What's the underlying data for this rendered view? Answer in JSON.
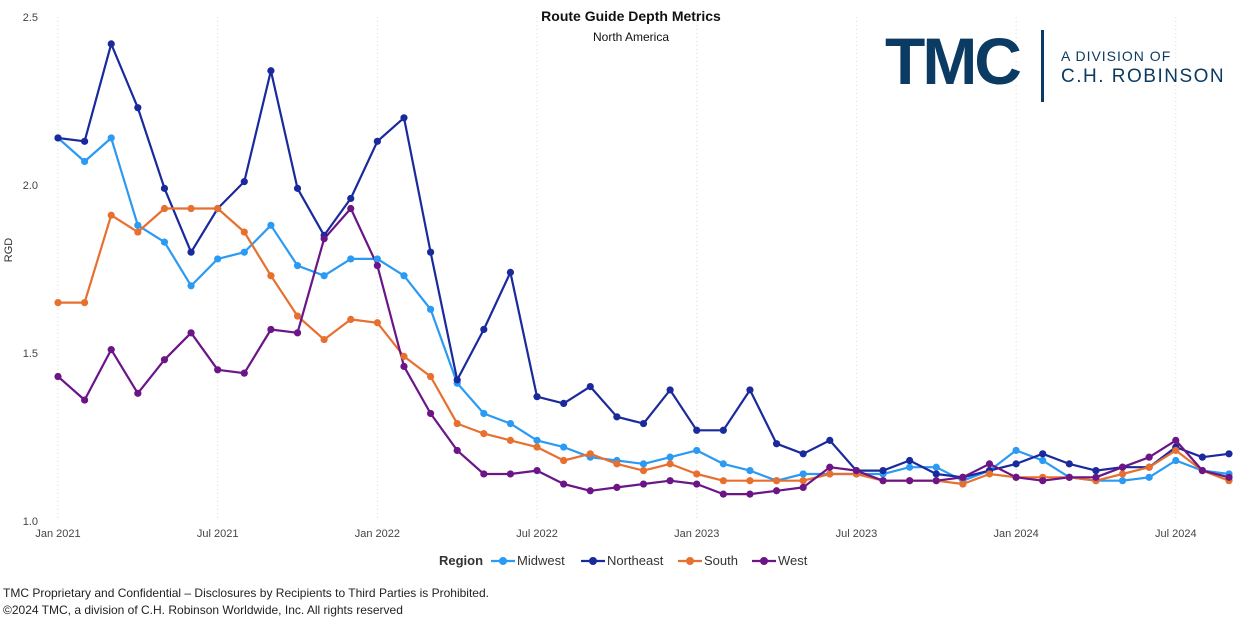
{
  "header": {
    "title": "Route Guide Depth Metrics",
    "subtitle": "North America"
  },
  "logo": {
    "main": "TMC",
    "line1": "A DIVISION OF",
    "line2": "C.H. ROBINSON"
  },
  "footer": {
    "line1": "TMC Proprietary and Confidential – Disclosures by Recipients to Third Parties is Prohibited.",
    "line2": "©2024 TMC, a division of C.H. Robinson Worldwide, Inc. All rights reserved"
  },
  "colors": {
    "Midwest": "#2b9af3",
    "Northeast": "#1a2a9c",
    "South": "#e8702f",
    "West": "#6b1587",
    "logo": "#0b3b63"
  },
  "chart_data": {
    "type": "line",
    "ylabel": "RGD",
    "ylim": [
      1.0,
      2.5
    ],
    "yticks": [
      "1.0",
      "1.5",
      "2.0",
      "2.5"
    ],
    "xticks": [
      "Jan 2021",
      "Jul 2021",
      "Jan 2022",
      "Jul 2022",
      "Jan 2023",
      "Jul 2023",
      "Jan 2024",
      "Jul 2024"
    ],
    "x": [
      "Jan 2021",
      "Feb 2021",
      "Mar 2021",
      "Apr 2021",
      "May 2021",
      "Jun 2021",
      "Jul 2021",
      "Aug 2021",
      "Sep 2021",
      "Oct 2021",
      "Nov 2021",
      "Dec 2021",
      "Jan 2022",
      "Feb 2022",
      "Mar 2022",
      "Apr 2022",
      "May 2022",
      "Jun 2022",
      "Jul 2022",
      "Aug 2022",
      "Sep 2022",
      "Oct 2022",
      "Nov 2022",
      "Dec 2022",
      "Jan 2023",
      "Feb 2023",
      "Mar 2023",
      "Apr 2023",
      "May 2023",
      "Jun 2023",
      "Jul 2023",
      "Aug 2023",
      "Sep 2023",
      "Oct 2023",
      "Nov 2023",
      "Dec 2023",
      "Jan 2024",
      "Feb 2024",
      "Mar 2024",
      "Apr 2024",
      "May 2024",
      "Jun 2024",
      "Jul 2024",
      "Aug 2024",
      "Sep 2024"
    ],
    "legend_title": "Region",
    "legend_position": "bottom-center",
    "grid": "vertical",
    "series": [
      {
        "name": "Midwest",
        "values": [
          2.14,
          2.07,
          2.14,
          1.88,
          1.83,
          1.7,
          1.78,
          1.8,
          1.88,
          1.76,
          1.73,
          1.78,
          1.78,
          1.73,
          1.63,
          1.41,
          1.32,
          1.29,
          1.24,
          1.22,
          1.19,
          1.18,
          1.17,
          1.19,
          1.21,
          1.17,
          1.15,
          1.12,
          1.14,
          1.14,
          1.14,
          1.14,
          1.16,
          1.16,
          1.12,
          1.15,
          1.21,
          1.18,
          1.13,
          1.12,
          1.12,
          1.13,
          1.18,
          1.15,
          1.14
        ]
      },
      {
        "name": "Northeast",
        "values": [
          2.14,
          2.13,
          2.42,
          2.23,
          1.99,
          1.8,
          1.93,
          2.01,
          2.34,
          1.99,
          1.85,
          1.96,
          2.13,
          2.2,
          1.8,
          1.42,
          1.57,
          1.74,
          1.37,
          1.35,
          1.4,
          1.31,
          1.29,
          1.39,
          1.27,
          1.27,
          1.39,
          1.23,
          1.2,
          1.24,
          1.15,
          1.15,
          1.18,
          1.14,
          1.13,
          1.15,
          1.17,
          1.2,
          1.17,
          1.15,
          1.16,
          1.16,
          1.22,
          1.19,
          1.2
        ]
      },
      {
        "name": "South",
        "values": [
          1.65,
          1.65,
          1.91,
          1.86,
          1.93,
          1.93,
          1.93,
          1.86,
          1.73,
          1.61,
          1.54,
          1.6,
          1.59,
          1.49,
          1.43,
          1.29,
          1.26,
          1.24,
          1.22,
          1.18,
          1.2,
          1.17,
          1.15,
          1.17,
          1.14,
          1.12,
          1.12,
          1.12,
          1.12,
          1.14,
          1.14,
          1.12,
          1.12,
          1.12,
          1.11,
          1.14,
          1.13,
          1.13,
          1.13,
          1.12,
          1.14,
          1.16,
          1.21,
          1.15,
          1.12
        ]
      },
      {
        "name": "West",
        "values": [
          1.43,
          1.36,
          1.51,
          1.38,
          1.48,
          1.56,
          1.45,
          1.44,
          1.57,
          1.56,
          1.84,
          1.93,
          1.76,
          1.46,
          1.32,
          1.21,
          1.14,
          1.14,
          1.15,
          1.11,
          1.09,
          1.1,
          1.11,
          1.12,
          1.11,
          1.08,
          1.08,
          1.09,
          1.1,
          1.16,
          1.15,
          1.12,
          1.12,
          1.12,
          1.13,
          1.17,
          1.13,
          1.12,
          1.13,
          1.13,
          1.16,
          1.19,
          1.24,
          1.15,
          1.13
        ]
      }
    ]
  }
}
